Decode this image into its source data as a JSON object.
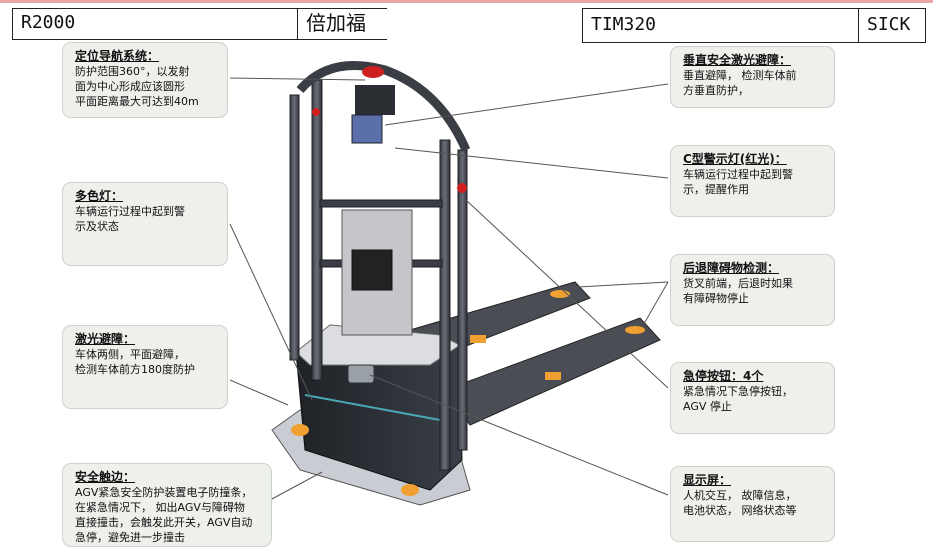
{
  "header": {
    "left_model": "R2000",
    "left_brand": "倍加福",
    "right_model": "TIM320",
    "right_brand": "SICK"
  },
  "callouts": {
    "nav": {
      "title": "定位导航系统：",
      "body": "防护范围360°，以发射\n面为中心形成应该圆形\n平面距离最大可达到40m"
    },
    "multicolor_light": {
      "title": "多色灯：",
      "body": "车辆运行过程中起到警\n示及状态"
    },
    "laser_avoid": {
      "title": "激光避障：",
      "body": "车体两侧，平面避障，\n检测车体前方180度防护"
    },
    "safety_edge": {
      "title": "安全触边：",
      "body": "AGV紧急安全防护装置电子防撞条，\n在紧急情况下， 如出AGV与障碍物\n直接撞击，会触发此开关，AGV自动\n急停，避免进一步撞击"
    },
    "vertical_laser": {
      "title": "垂直安全激光避障：",
      "body": "垂直避障， 检测车体前\n方垂直防护，"
    },
    "c_light": {
      "title": "C型警示灯(红光)：",
      "body": "车辆运行过程中起到警\n示，提醒作用"
    },
    "rear_detect": {
      "title": "后退障碍物检测：",
      "body": "货叉前端，后退时如果\n有障碍物停止"
    },
    "estop": {
      "title": "急停按钮：4个",
      "body": "紧急情况下急停按钮，\nAGV 停止"
    },
    "display": {
      "title": "显示屏：",
      "body": "人机交互， 故障信息，\n电池状态， 网络状态等"
    }
  },
  "colors": {
    "callout_bg": "#eef0ec",
    "accent_orange": "#f0a030",
    "warning_red": "#d02020"
  }
}
